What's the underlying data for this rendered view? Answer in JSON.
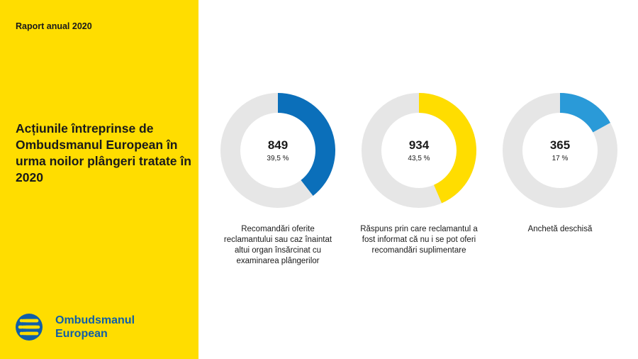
{
  "sidebar": {
    "report_label": "Raport anual 2020",
    "title": "Acțiunile întreprinse de Ombudsmanul European în urma noilor plângeri tratate în 2020",
    "logo_line1": "Ombudsmanul",
    "logo_line2": "European",
    "brand_color": "#ffdd00",
    "logo_color": "#0f5ea8"
  },
  "chart_data": {
    "type": "pie",
    "track_color": "#e6e6e6",
    "items": [
      {
        "value": 849,
        "value_label": "849",
        "percent": 39.5,
        "percent_label": "39,5 %",
        "color": "#0b6fba",
        "caption": "Recomandări oferite reclamantului sau caz înaintat altui organ însărcinat cu examinarea plângerilor"
      },
      {
        "value": 934,
        "value_label": "934",
        "percent": 43.5,
        "percent_label": "43,5 %",
        "color": "#ffdd00",
        "caption": "Răspuns prin care reclamantul a fost informat că nu i se pot oferi recomandări suplimentare"
      },
      {
        "value": 365,
        "value_label": "365",
        "percent": 17,
        "percent_label": "17 %",
        "color": "#2a9ad8",
        "caption": "Anchetă deschisă"
      }
    ]
  }
}
